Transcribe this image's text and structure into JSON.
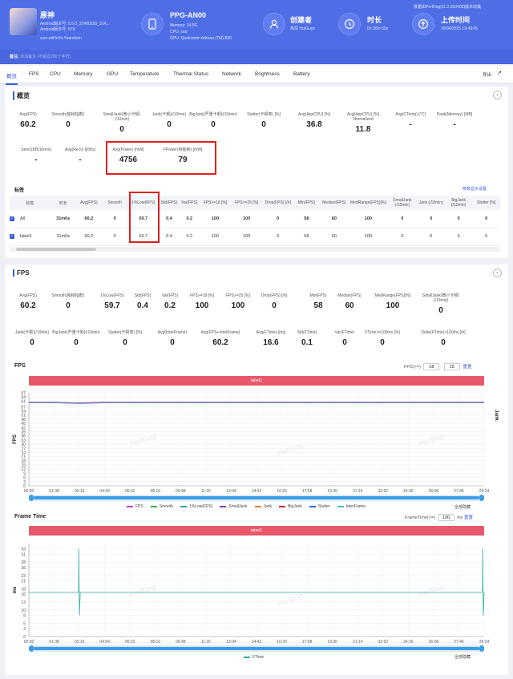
{
  "top": {
    "app_name": "原神",
    "app_line1": "Android版本号: 5.5.0_31400259_314...",
    "app_line2": "Android版本号: 979",
    "app_package": "com.miHoYo.Yuanshen",
    "device_name": "PPG-AN00",
    "device_memory": "Memory: 14.9G",
    "device_cpu": "CPU: sun",
    "device_gpu": "GPU: Qualcomm Adreno (TM) 830",
    "creator_label": "创建者",
    "creator_value": "热悍 HotGuys",
    "duration_label": "时长",
    "duration_value": "0h 30m 59s",
    "upload_label": "上传时间",
    "upload_value": "20/04/2025 19:49:45",
    "version_note": "数据由PerfDog(11.2.250408)版本收集",
    "note_label": "备注:",
    "note_value": "添加备注   (不超过200个字符)"
  },
  "tabs": [
    "概览",
    "FPS",
    "CPU",
    "Memory",
    "GPU",
    "Temperature",
    "Thermal Status",
    "Network",
    "Brightness",
    "Battery"
  ],
  "export_label": "导出",
  "overview": {
    "title": "概览",
    "stats_row1": [
      {
        "label": "Avg(FPS)",
        "value": "60.2"
      },
      {
        "label": "Smooth(独帧指数)",
        "value": "0"
      },
      {
        "label": "SmallJank(微小卡顿)(/10min)",
        "value": "0"
      },
      {
        "label": "Jank(卡顿)(/10min)",
        "value": "0"
      },
      {
        "label": "BigJank(严重卡顿)(/10min)",
        "value": "0"
      },
      {
        "label": "Stutter(卡顿率) [%]",
        "value": "0"
      },
      {
        "label": "Avg(AppCPU) [%]",
        "value": "36.8"
      },
      {
        "label": "Avg(AppCPU) [%] Normalized",
        "value": "11.8"
      },
      {
        "label": "Avg(CTemp) [°C]",
        "value": "-"
      },
      {
        "label": "Peak(Memory) [MB]",
        "value": "-"
      }
    ],
    "stats_row2": [
      {
        "label": "Send [KB/10min]",
        "value": "-"
      },
      {
        "label": "Avg(Recv) [KB/s]",
        "value": "-"
      },
      {
        "label": "Avg(Power) [mW]",
        "value": "4756"
      },
      {
        "label": "FPower(帧能耗) [mW]",
        "value": "79"
      }
    ],
    "label_section": "标签",
    "column_settings": "参数显示设置",
    "table_headers": [
      "标签",
      "时长",
      "Avg(FPS)",
      "Smooth",
      "1%Low(FPS)",
      "Std(FPS)",
      "Var(FPS)",
      "FPS>=18 [%]",
      "FPS>=25 [%]",
      "Drop(FPS) [/h]",
      "Min(FPS)",
      "Median(FPS)",
      "MedRange(FPS)[%]",
      "SmallJank (/10min)",
      "Jank (/10min)",
      "BigJank (/10min)",
      "Stutter [%]"
    ],
    "table_rows": [
      [
        "All",
        "31m0s",
        "60.2",
        "0",
        "59.7",
        "0.4",
        "0.2",
        "100",
        "100",
        "0",
        "58",
        "60",
        "100",
        "0",
        "0",
        "0",
        "0"
      ],
      [
        "label1",
        "31m0s",
        "60.2",
        "0",
        "59.7",
        "0.4",
        "0.2",
        "100",
        "100",
        "0",
        "58",
        "60",
        "100",
        "0",
        "0",
        "0",
        "0"
      ]
    ]
  },
  "fps": {
    "title": "FPS",
    "stats_row1": [
      {
        "label": "Avg(FPS)",
        "value": "60.2"
      },
      {
        "label": "Smooth(独帧指数)",
        "value": "0"
      },
      {
        "label": "1%Low(FPS)",
        "value": "59.7"
      },
      {
        "label": "Std(FPS)",
        "value": "0.4"
      },
      {
        "label": "Var(FPS)",
        "value": "0.2"
      },
      {
        "label": "FPS>=18 [%]",
        "value": "100"
      },
      {
        "label": "FPS>=25 [%]",
        "value": "100"
      },
      {
        "label": "Drop(FPS) [/h]",
        "value": "0"
      },
      {
        "label": "Min(FPS)",
        "value": "58"
      },
      {
        "label": "Median(FPS)",
        "value": "60"
      },
      {
        "label": "MedRange(FPS)[%]",
        "value": "100"
      },
      {
        "label": "SmallJank(微小卡顿)(/10min)",
        "value": "0"
      }
    ],
    "stats_row2": [
      {
        "label": "Jank(卡顿)(/10min)",
        "value": "0"
      },
      {
        "label": "BigJank(严重卡顿)(/10min)",
        "value": "0"
      },
      {
        "label": "Stutter(卡顿率) [%]",
        "value": "0"
      },
      {
        "label": "Avg(InterFrame)",
        "value": "0"
      },
      {
        "label": "Avg(FPS+InterFrame)",
        "value": "60.2"
      },
      {
        "label": "Avg(FTime) [ms]",
        "value": "16.6"
      },
      {
        "label": "Std(FTime)",
        "value": "0.1"
      },
      {
        "label": "Var(FTime)",
        "value": "0"
      },
      {
        "label": "FTime>=100ms [%]",
        "value": "0"
      },
      {
        "label": "Delta(FTime)>100ms [/h]",
        "value": "0"
      }
    ],
    "chart_title": "FPS",
    "fps_threshold_label": "FPS(>=)",
    "fps_threshold_1": "18",
    "fps_threshold_2": "25",
    "reset": "重置",
    "banner": "label1",
    "y_label": "FPS",
    "y2_label": "Jank",
    "legend": [
      "FPS",
      "Smooth",
      "1%Low(FPS)",
      "SmallJank",
      "Jank",
      "BigJank",
      "Stutter",
      "InterFrame"
    ],
    "legend_colors": [
      "#c040c0",
      "#40b040",
      "#30a0a0",
      "#8040c0",
      "#e08030",
      "#c03030",
      "#3060e0",
      "#40c0c0"
    ],
    "show_all": "全部隐藏",
    "ft_title": "Frame Time",
    "ft_threshold_label": "FrameTime(>=)",
    "ft_threshold": "100",
    "ft_unit": "ms",
    "ft_reset": "重置",
    "ft_banner": "label1",
    "ft_y_label": "ms",
    "ft_legend": "FTime",
    "ft_show_all": "全部隐藏",
    "watermark": "PerfDog"
  },
  "chart_data": [
    {
      "type": "line",
      "title": "FPS",
      "ylabel": "FPS",
      "ylim": [
        0,
        67
      ],
      "yticks": [
        0,
        3,
        6,
        9,
        12,
        15,
        18,
        21,
        24,
        27,
        30,
        33,
        36,
        39,
        42,
        45,
        48,
        51,
        54,
        57,
        61,
        64,
        67
      ],
      "x": [
        "00:00",
        "01:38",
        "03:16",
        "04:54",
        "06:32",
        "08:10",
        "09:48",
        "11:26",
        "13:04",
        "14:42",
        "16:20",
        "17:58",
        "19:36",
        "21:14",
        "22:52",
        "24:30",
        "26:08",
        "27:46",
        "29:24"
      ],
      "series": [
        {
          "name": "FPS",
          "values": [
            60,
            60,
            59.5,
            60,
            60,
            60,
            60,
            60,
            60,
            60,
            60,
            60,
            60,
            60,
            60,
            60,
            60,
            60,
            60
          ]
        }
      ],
      "legend": "bottom"
    },
    {
      "type": "line",
      "title": "Frame Time",
      "ylabel": "ms",
      "ylim": [
        0,
        35
      ],
      "yticks": [
        0,
        3,
        5,
        8,
        10,
        13,
        16,
        18,
        21,
        23,
        26,
        28,
        31,
        33
      ],
      "x": [
        "00:00",
        "01:38",
        "03:16",
        "04:54",
        "06:32",
        "08:10",
        "09:48",
        "11:26",
        "13:04",
        "14:42",
        "16:20",
        "17:58",
        "19:36",
        "21:14",
        "22:52",
        "24:30",
        "26:08",
        "27:46",
        "29:24"
      ],
      "series": [
        {
          "name": "FTime",
          "values": [
            16.6,
            16.6,
            33,
            16.6,
            16.6,
            16.6,
            16.6,
            16.6,
            16.6,
            16.6,
            16.6,
            16.6,
            16.6,
            16.6,
            16.6,
            16.6,
            16.6,
            16.6,
            16.6
          ]
        }
      ],
      "legend": "bottom"
    }
  ]
}
